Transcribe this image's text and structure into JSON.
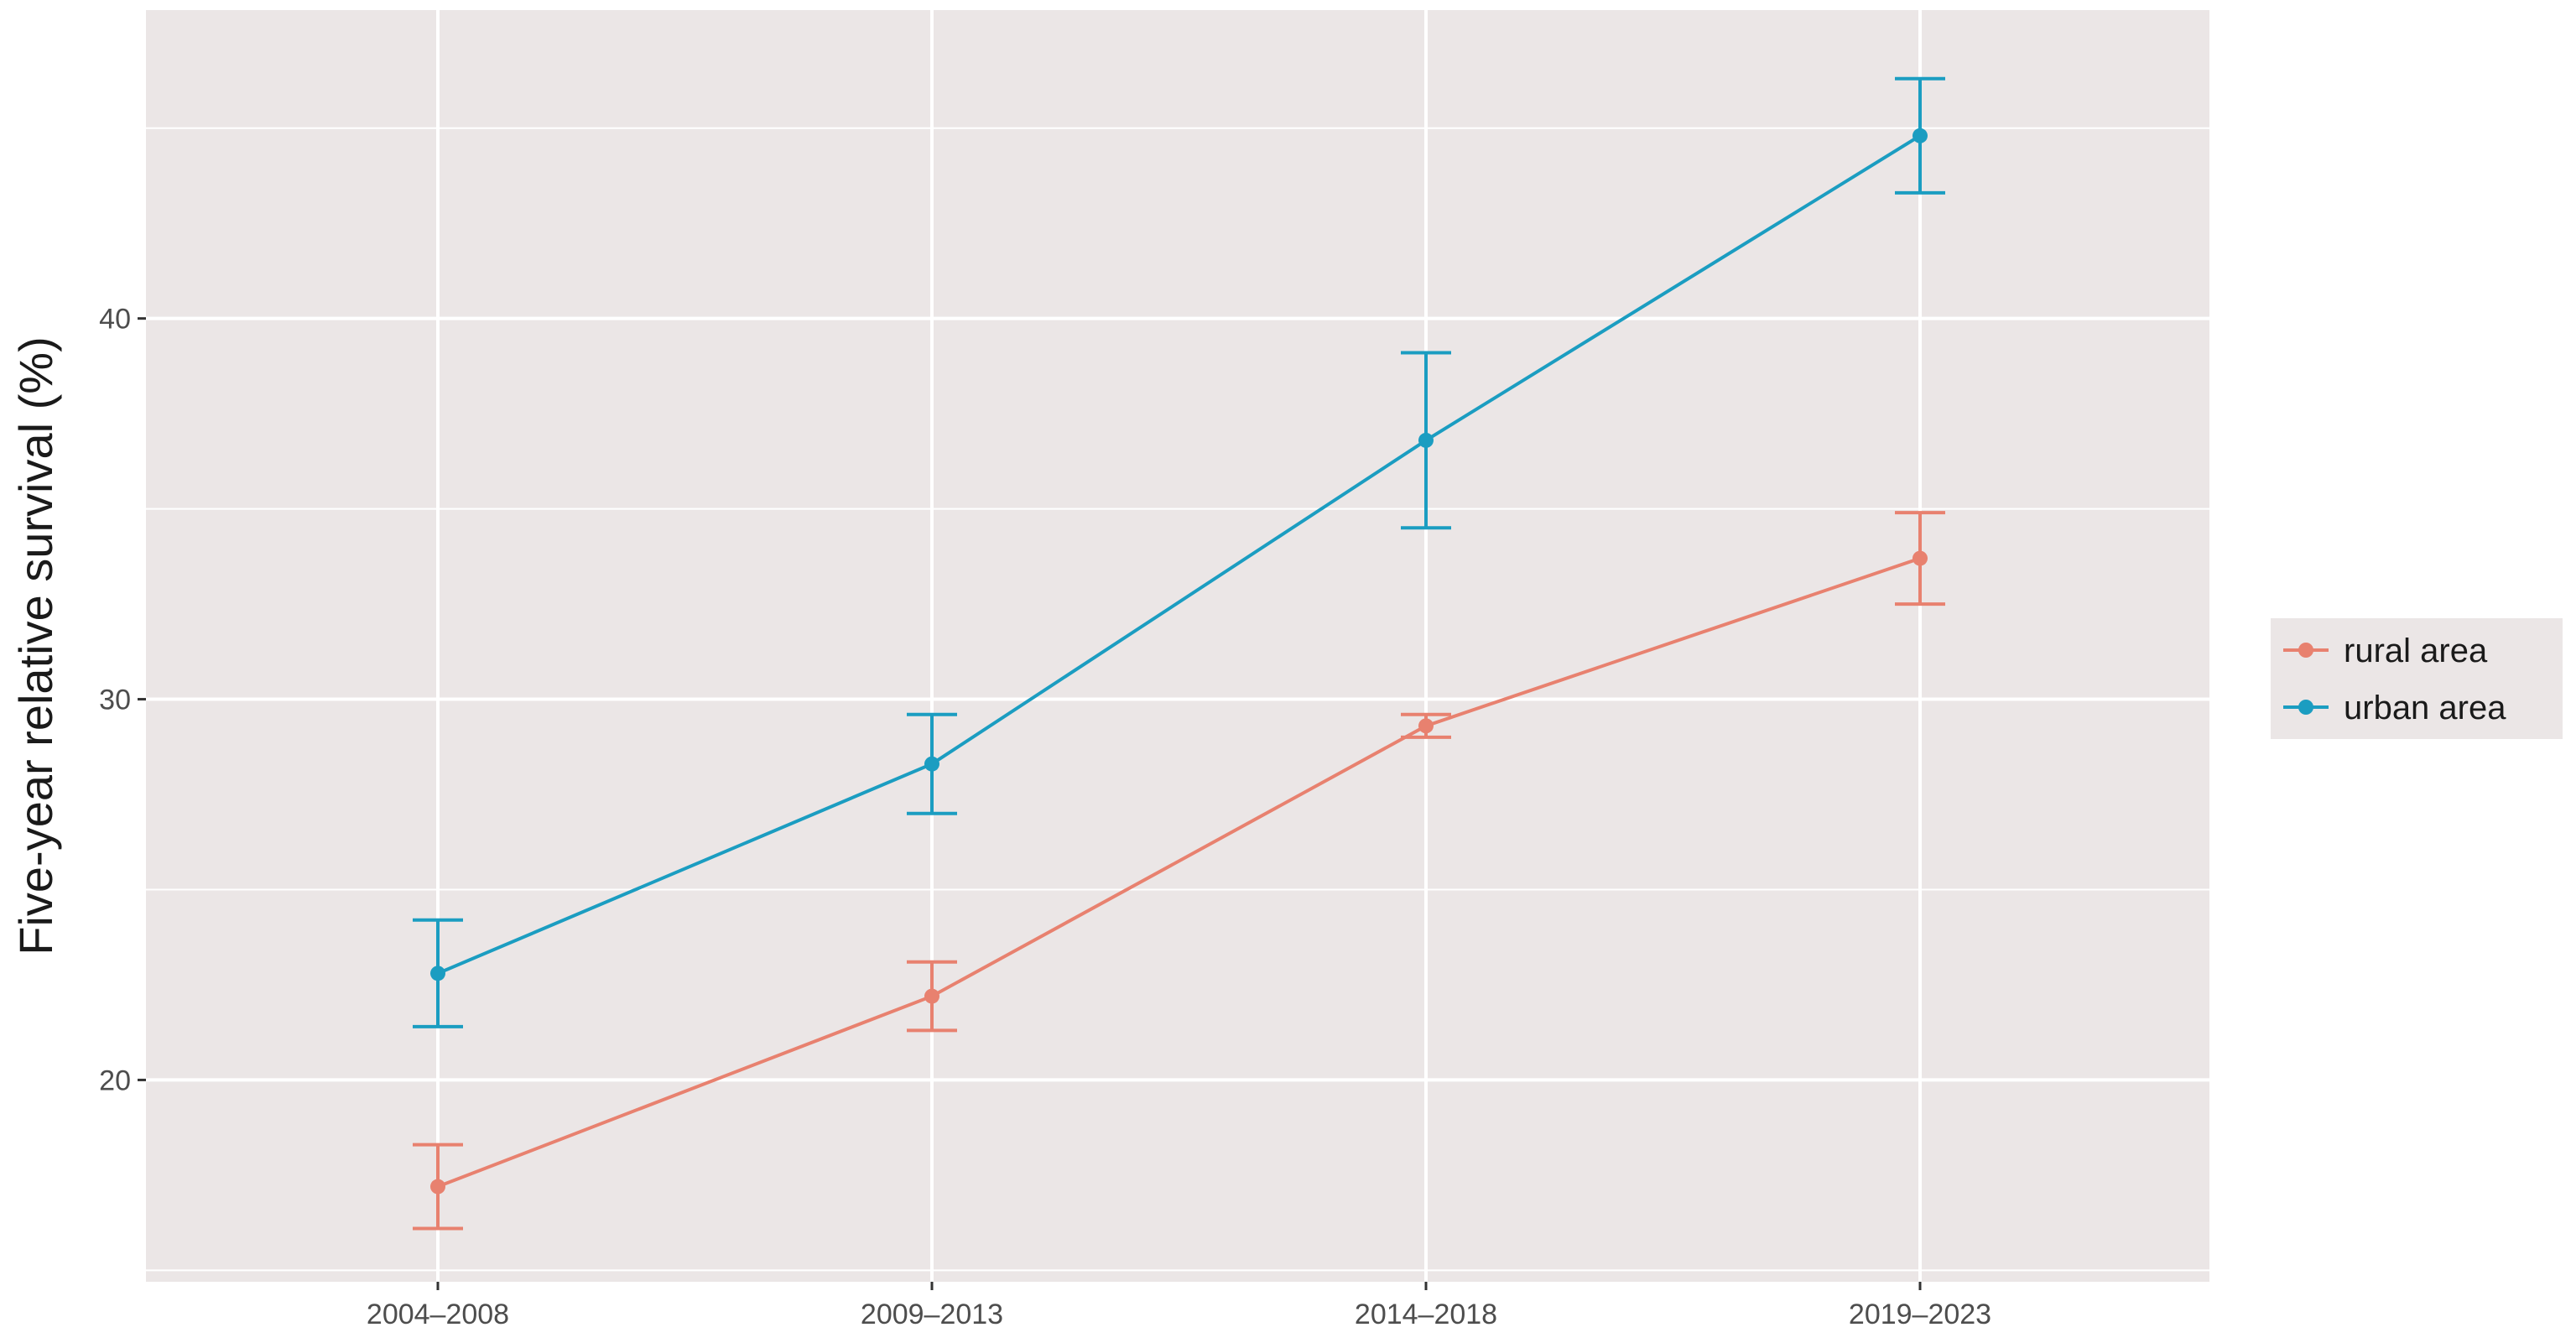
{
  "chart_data": {
    "type": "line",
    "title": "",
    "xlabel": "",
    "ylabel": "Five-year relative survival (%)",
    "categories": [
      "2004–2008",
      "2009–2013",
      "2014–2018",
      "2019–2023"
    ],
    "ylim": [
      14.7,
      48.1
    ],
    "yticks": [
      20,
      30,
      40
    ],
    "grid": true,
    "legend_position": "right",
    "error_bars": true,
    "series": [
      {
        "name": "rural area",
        "color": "#E8816F",
        "values": [
          17.2,
          22.2,
          29.3,
          33.7
        ],
        "lower": [
          16.1,
          21.3,
          29.0,
          32.5
        ],
        "upper": [
          18.3,
          23.1,
          29.6,
          34.9
        ]
      },
      {
        "name": "urban area",
        "color": "#1B9DC1",
        "values": [
          22.8,
          28.3,
          36.8,
          44.8
        ],
        "lower": [
          21.4,
          27.0,
          34.5,
          43.3
        ],
        "upper": [
          24.2,
          29.6,
          39.1,
          46.3
        ]
      }
    ],
    "panel_background": "#EBE6E6",
    "gridline_color": "#FFFFFF"
  }
}
